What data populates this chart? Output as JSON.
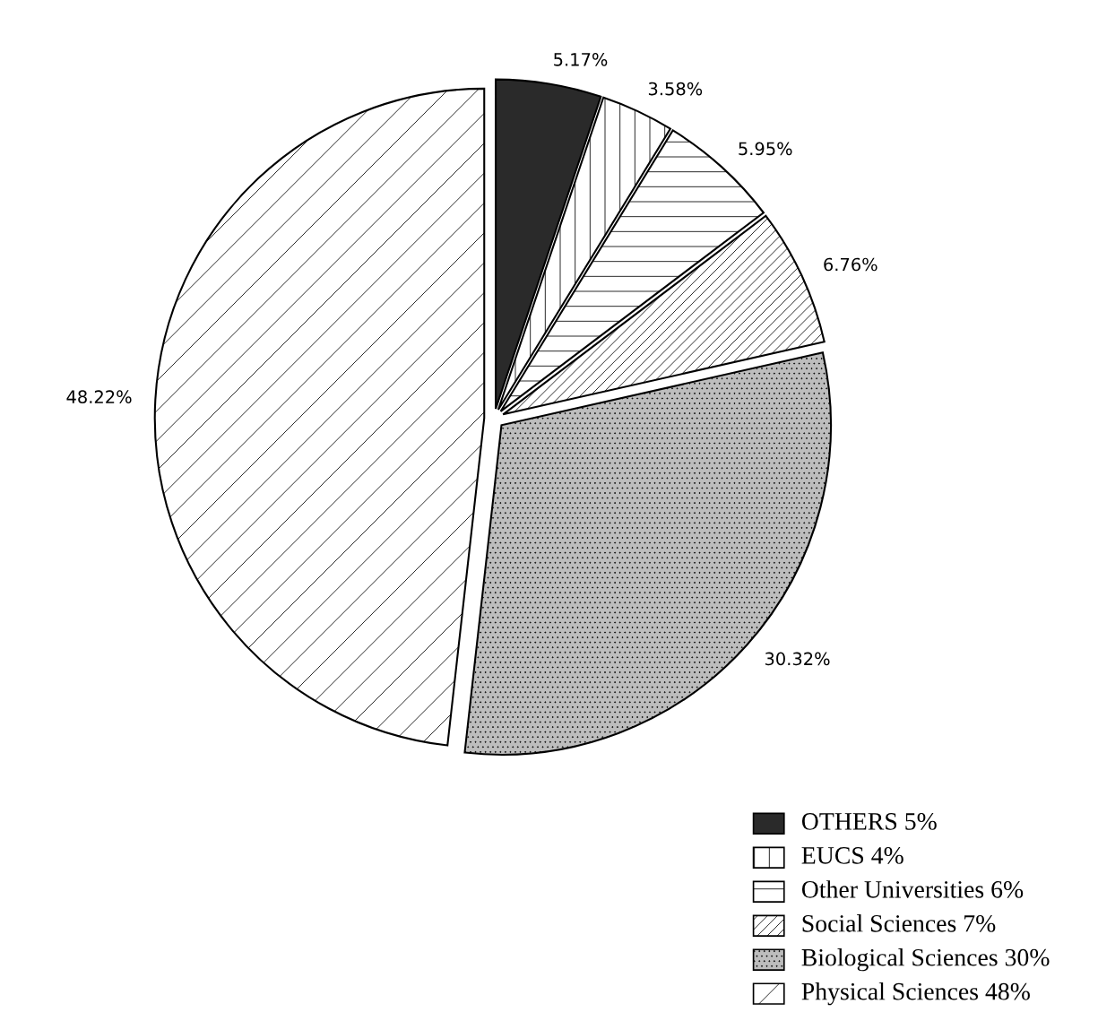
{
  "chart_data": {
    "type": "pie",
    "categories": [
      "OTHERS 5%",
      "EUCS 4%",
      "Other Universities 6%",
      "Social Sciences 7%",
      "Biological Sciences 30%",
      "Physical Sciences 48%"
    ],
    "values": [
      5.17,
      3.58,
      5.95,
      6.76,
      30.32,
      48.22
    ],
    "value_labels": [
      "5.17%",
      "3.58%",
      "5.95%",
      "6.76%",
      "30.32%",
      "48.22%"
    ],
    "colors": [
      "#2a2a2a",
      "#ffffff",
      "#ffffff",
      "#ffffff",
      "#bdbdbd",
      "#ffffff"
    ],
    "legend": "bottom right"
  }
}
